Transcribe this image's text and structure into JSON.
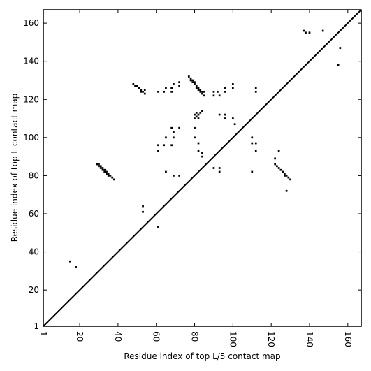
{
  "chart_data": {
    "type": "heatmap",
    "title": "",
    "xlabel": "Residue index of top L/5 contact map",
    "ylabel": "Residue index of top L contact map",
    "xlim": [
      1,
      167
    ],
    "ylim": [
      1,
      167
    ],
    "xticks": [
      1,
      20,
      40,
      60,
      80,
      100,
      120,
      140,
      160
    ],
    "yticks": [
      1,
      20,
      40,
      60,
      80,
      100,
      120,
      140,
      160
    ],
    "xtick_labels": [
      "1",
      "20",
      "40",
      "60",
      "80",
      "100",
      "120",
      "140",
      "160"
    ],
    "ytick_labels": [
      "1",
      "20",
      "40",
      "60",
      "80",
      "100",
      "120",
      "140",
      "160"
    ],
    "x_tick_label_rotation": "vertical",
    "diagonal_line": true,
    "grid": false,
    "cell_color": "#000000",
    "contacts": [
      [
        15,
        35
      ],
      [
        18,
        32
      ],
      [
        29,
        86
      ],
      [
        30,
        85
      ],
      [
        30,
        86
      ],
      [
        31,
        84
      ],
      [
        31,
        85
      ],
      [
        32,
        83
      ],
      [
        32,
        84
      ],
      [
        33,
        82
      ],
      [
        33,
        83
      ],
      [
        34,
        81
      ],
      [
        34,
        82
      ],
      [
        35,
        80
      ],
      [
        35,
        81
      ],
      [
        36,
        80
      ],
      [
        37,
        79
      ],
      [
        38,
        78
      ],
      [
        53,
        64
      ],
      [
        53,
        61
      ],
      [
        61,
        53
      ],
      [
        48,
        128
      ],
      [
        49,
        127
      ],
      [
        50,
        127
      ],
      [
        51,
        126
      ],
      [
        52,
        125
      ],
      [
        52,
        124
      ],
      [
        53,
        124
      ],
      [
        54,
        123
      ],
      [
        54,
        125
      ],
      [
        61,
        124
      ],
      [
        64,
        124
      ],
      [
        65,
        126
      ],
      [
        68,
        124
      ],
      [
        68,
        126
      ],
      [
        69,
        128
      ],
      [
        72,
        129
      ],
      [
        72,
        127
      ],
      [
        77,
        132
      ],
      [
        78,
        131
      ],
      [
        78,
        130
      ],
      [
        79,
        130
      ],
      [
        79,
        129
      ],
      [
        80,
        129
      ],
      [
        80,
        128
      ],
      [
        81,
        127
      ],
      [
        81,
        126
      ],
      [
        82,
        126
      ],
      [
        82,
        125
      ],
      [
        83,
        125
      ],
      [
        83,
        124
      ],
      [
        84,
        124
      ],
      [
        84,
        123
      ],
      [
        85,
        122
      ],
      [
        85,
        124
      ],
      [
        90,
        124
      ],
      [
        90,
        122
      ],
      [
        92,
        124
      ],
      [
        93,
        122
      ],
      [
        96,
        126
      ],
      [
        96,
        124
      ],
      [
        100,
        128
      ],
      [
        100,
        126
      ],
      [
        112,
        126
      ],
      [
        112,
        124
      ],
      [
        61,
        96
      ],
      [
        61,
        93
      ],
      [
        64,
        96
      ],
      [
        65,
        100
      ],
      [
        68,
        105
      ],
      [
        68,
        96
      ],
      [
        69,
        100
      ],
      [
        69,
        103
      ],
      [
        72,
        105
      ],
      [
        65,
        82
      ],
      [
        69,
        80
      ],
      [
        72,
        80
      ],
      [
        80,
        112
      ],
      [
        80,
        110
      ],
      [
        81,
        113
      ],
      [
        81,
        111
      ],
      [
        82,
        112
      ],
      [
        82,
        110
      ],
      [
        83,
        113
      ],
      [
        84,
        114
      ],
      [
        80,
        105
      ],
      [
        80,
        100
      ],
      [
        82,
        97
      ],
      [
        82,
        93
      ],
      [
        84,
        92
      ],
      [
        84,
        90
      ],
      [
        90,
        84
      ],
      [
        93,
        84
      ],
      [
        93,
        82
      ],
      [
        93,
        112
      ],
      [
        96,
        112
      ],
      [
        96,
        110
      ],
      [
        100,
        110
      ],
      [
        101,
        107
      ],
      [
        110,
        100
      ],
      [
        110,
        97
      ],
      [
        110,
        82
      ],
      [
        112,
        97
      ],
      [
        112,
        93
      ],
      [
        122,
        89
      ],
      [
        122,
        86
      ],
      [
        123,
        85
      ],
      [
        124,
        84
      ],
      [
        124,
        93
      ],
      [
        125,
        83
      ],
      [
        126,
        82
      ],
      [
        127,
        81
      ],
      [
        127,
        80
      ],
      [
        128,
        80
      ],
      [
        129,
        79
      ],
      [
        130,
        78
      ],
      [
        128,
        72
      ],
      [
        137,
        156
      ],
      [
        138,
        155
      ],
      [
        140,
        155
      ],
      [
        147,
        156
      ],
      [
        156,
        147
      ],
      [
        155,
        138
      ]
    ]
  }
}
